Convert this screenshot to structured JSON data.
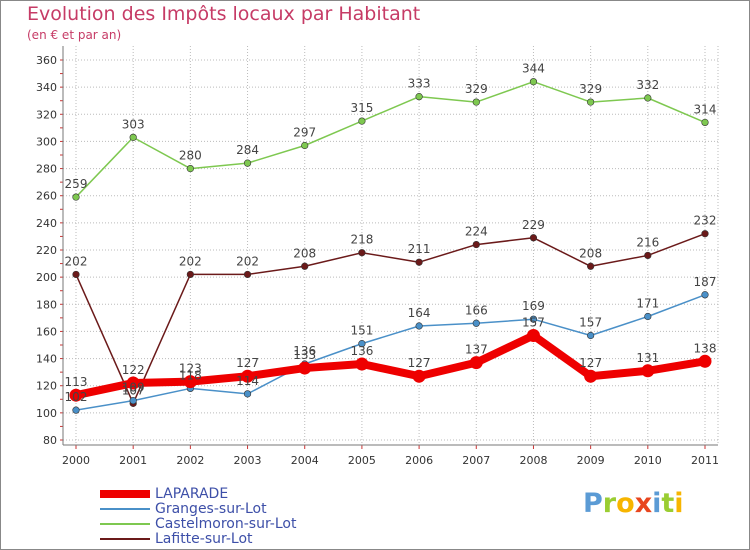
{
  "title": "Evolution des Impôts locaux par Habitant",
  "subtitle": "(en € et par an)",
  "logo": {
    "text": "Proxiti",
    "letters": [
      {
        "ch": "P",
        "color": "#5b9bd5"
      },
      {
        "ch": "r",
        "color": "#9acd32"
      },
      {
        "ch": "o",
        "color": "#f7b500"
      },
      {
        "ch": "x",
        "color": "#e8451e"
      },
      {
        "ch": "i",
        "color": "#5b9bd5"
      },
      {
        "ch": "t",
        "color": "#9acd32"
      },
      {
        "ch": "i",
        "color": "#f7b500"
      }
    ]
  },
  "chart_data": {
    "type": "line",
    "x": [
      "2000",
      "2001",
      "2002",
      "2003",
      "2004",
      "2005",
      "2006",
      "2007",
      "2008",
      "2009",
      "2010",
      "2011"
    ],
    "ylim": [
      80,
      360
    ],
    "yticks": [
      80,
      100,
      120,
      140,
      160,
      180,
      200,
      220,
      240,
      260,
      280,
      300,
      320,
      340,
      360
    ],
    "grid": true,
    "legend_position": "bottom-left",
    "series": [
      {
        "name": "LAPARADE",
        "color": "#ee0000",
        "values": [
          113,
          122,
          123,
          127,
          133,
          136,
          127,
          137,
          157,
          127,
          131,
          138
        ],
        "labels": [
          "113",
          "122",
          "123",
          "127",
          "133",
          "136",
          "127",
          "137",
          "157",
          "127",
          "131",
          "138"
        ]
      },
      {
        "name": "Granges-sur-Lot",
        "color": "#4a90c8",
        "values": [
          102,
          109,
          118,
          114,
          136,
          151,
          164,
          166,
          169,
          157,
          171,
          187
        ],
        "labels": [
          "102",
          "109",
          "118",
          "114",
          "136",
          "151",
          "164",
          "166",
          "169",
          "157",
          "171",
          "187"
        ]
      },
      {
        "name": "Castelmoron-sur-Lot",
        "color": "#7ec850",
        "values": [
          259,
          303,
          280,
          284,
          297,
          315,
          333,
          329,
          344,
          329,
          332,
          314
        ],
        "labels": [
          "259",
          "303",
          "280",
          "284",
          "297",
          "315",
          "333",
          "329",
          "344",
          "329",
          "332",
          "314"
        ]
      },
      {
        "name": "Lafitte-sur-Lot",
        "color": "#6b1a1a",
        "values": [
          202,
          107,
          202,
          202,
          208,
          218,
          211,
          224,
          229,
          208,
          216,
          232
        ],
        "labels": [
          "202",
          "107",
          "202",
          "202",
          "208",
          "218",
          "211",
          "224",
          "229",
          "208",
          "216",
          "232"
        ]
      }
    ]
  }
}
